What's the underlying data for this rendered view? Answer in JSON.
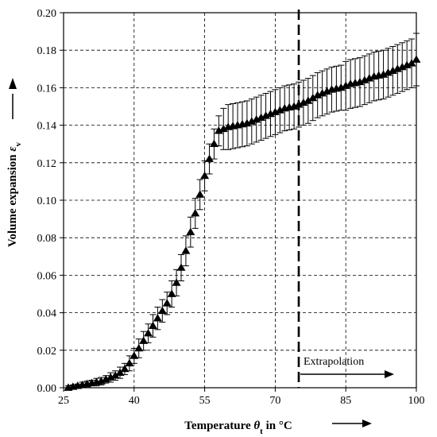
{
  "chart_data": {
    "type": "scatter",
    "xlabel_main": "Temperature ",
    "xlabel_symbol": "θ",
    "xlabel_sub": "t",
    "xlabel_tail": " in °C",
    "ylabel_main": "Volume expansion ",
    "ylabel_symbol": "ε",
    "ylabel_sub": "v",
    "xlim": [
      25,
      100
    ],
    "ylim": [
      0,
      0.2
    ],
    "xticks": [
      25,
      40,
      55,
      70,
      85,
      100
    ],
    "xtick_labels": [
      "25",
      "40",
      "55",
      "70",
      "85",
      "100"
    ],
    "yticks": [
      0,
      0.02,
      0.04,
      0.06,
      0.08,
      0.1,
      0.12,
      0.14,
      0.16,
      0.18,
      0.2
    ],
    "ytick_labels": [
      "0.00",
      "0.02",
      "0.04",
      "0.06",
      "0.08",
      "0.10",
      "0.12",
      "0.14",
      "0.16",
      "0.18",
      "0.20"
    ],
    "grid": true,
    "marker": "triangle",
    "extrapolation_start": 75,
    "annotation": "Extrapolation",
    "series": [
      {
        "x": [
          26,
          27,
          28,
          29,
          30,
          31,
          32,
          33,
          34,
          35,
          36,
          37,
          38,
          39,
          40,
          41,
          42,
          43,
          44,
          45,
          46,
          47,
          48,
          49,
          50,
          51,
          52,
          53,
          54,
          55,
          56,
          57,
          58,
          59,
          60,
          61,
          62,
          63,
          64,
          65,
          66,
          67,
          68,
          69,
          70,
          71,
          72,
          73,
          74,
          75,
          76,
          77,
          78,
          79,
          80,
          81,
          82,
          83,
          84,
          85,
          86,
          87,
          88,
          89,
          90,
          91,
          92,
          93,
          94,
          95,
          96,
          97,
          98,
          99,
          100
        ],
        "y": [
          0.0,
          0.0005,
          0.001,
          0.0015,
          0.002,
          0.0025,
          0.003,
          0.0035,
          0.0045,
          0.0055,
          0.0065,
          0.008,
          0.01,
          0.013,
          0.017,
          0.021,
          0.025,
          0.029,
          0.033,
          0.037,
          0.041,
          0.045,
          0.05,
          0.056,
          0.064,
          0.073,
          0.083,
          0.093,
          0.103,
          0.113,
          0.122,
          0.13,
          0.137,
          0.138,
          0.139,
          0.1395,
          0.14,
          0.1405,
          0.141,
          0.142,
          0.143,
          0.144,
          0.145,
          0.146,
          0.147,
          0.148,
          0.149,
          0.1495,
          0.15,
          0.151,
          0.152,
          0.153,
          0.1545,
          0.156,
          0.157,
          0.158,
          0.159,
          0.1595,
          0.16,
          0.161,
          0.162,
          0.1625,
          0.163,
          0.164,
          0.165,
          0.166,
          0.1665,
          0.167,
          0.168,
          0.169,
          0.17,
          0.171,
          0.172,
          0.173,
          0.175
        ],
        "err": [
          0.001,
          0.001,
          0.001,
          0.0015,
          0.0015,
          0.0015,
          0.002,
          0.002,
          0.002,
          0.0025,
          0.0025,
          0.003,
          0.003,
          0.004,
          0.004,
          0.005,
          0.005,
          0.005,
          0.006,
          0.006,
          0.006,
          0.006,
          0.007,
          0.007,
          0.007,
          0.008,
          0.008,
          0.008,
          0.008,
          0.008,
          0.008,
          0.008,
          0.008,
          0.011,
          0.012,
          0.012,
          0.012,
          0.012,
          0.012,
          0.012,
          0.012,
          0.012,
          0.012,
          0.012,
          0.012,
          0.012,
          0.012,
          0.012,
          0.012,
          0.012,
          0.012,
          0.012,
          0.012,
          0.012,
          0.012,
          0.012,
          0.012,
          0.012,
          0.012,
          0.013,
          0.013,
          0.013,
          0.013,
          0.013,
          0.013,
          0.013,
          0.013,
          0.013,
          0.013,
          0.013,
          0.013,
          0.013,
          0.013,
          0.013,
          0.014
        ]
      }
    ]
  }
}
